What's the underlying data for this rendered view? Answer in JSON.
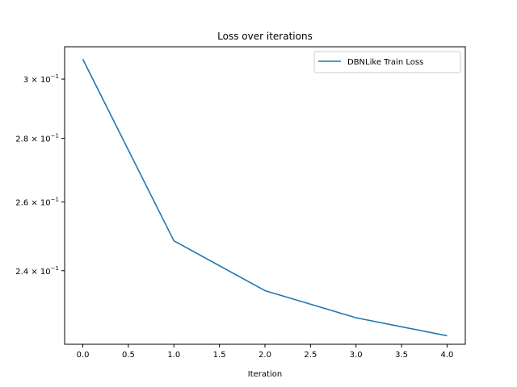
{
  "chart_data": {
    "type": "line",
    "title": "Loss over iterations",
    "xlabel": "Iteration",
    "ylabel": "",
    "yscale": "log",
    "x": [
      0,
      1,
      2,
      3,
      4
    ],
    "series": [
      {
        "name": "DBNLike Train Loss",
        "color": "#1f77b4",
        "values": [
          0.307,
          0.2485,
          0.2345,
          0.2272,
          0.2225
        ]
      }
    ],
    "xlim": [
      -0.2,
      4.2
    ],
    "ylim": [
      0.2203,
      0.3115
    ],
    "xticks": [
      0.0,
      0.5,
      1.0,
      1.5,
      2.0,
      2.5,
      3.0,
      3.5,
      4.0
    ],
    "xtick_labels": [
      "0.0",
      "0.5",
      "1.0",
      "1.5",
      "2.0",
      "2.5",
      "3.0",
      "3.5",
      "4.0"
    ],
    "yticks": [
      0.3,
      0.28,
      0.26,
      0.24
    ],
    "ytick_labels": [
      {
        "mantissa": "3",
        "exp": "−1"
      },
      {
        "mantissa": "2.8",
        "exp": "−1"
      },
      {
        "mantissa": "2.6",
        "exp": "−1"
      },
      {
        "mantissa": "2.4",
        "exp": "−1"
      }
    ],
    "ytick_base": "10",
    "ytick_times": "×",
    "legend_position": "upper right",
    "grid": false
  }
}
